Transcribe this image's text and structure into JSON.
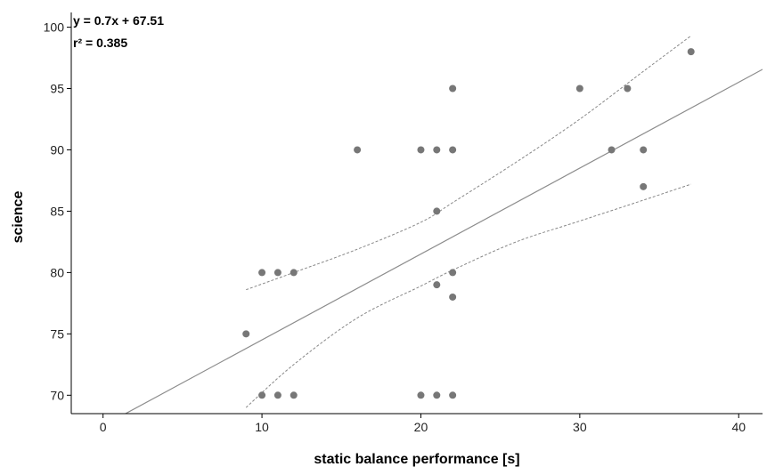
{
  "chart_data": {
    "type": "scatter",
    "title": "",
    "xlabel": "static balance performance [s]",
    "ylabel": "science",
    "xlim": [
      -2,
      41.5
    ],
    "ylim": [
      68.5,
      101.2
    ],
    "x_ticks": [
      0,
      10,
      20,
      30,
      40
    ],
    "y_ticks": [
      70,
      75,
      80,
      85,
      90,
      95,
      100
    ],
    "grid": false,
    "points": [
      {
        "x": 9,
        "y": 75
      },
      {
        "x": 10,
        "y": 80
      },
      {
        "x": 11,
        "y": 80
      },
      {
        "x": 12,
        "y": 80
      },
      {
        "x": 10,
        "y": 70
      },
      {
        "x": 11,
        "y": 70
      },
      {
        "x": 12,
        "y": 70
      },
      {
        "x": 16,
        "y": 90
      },
      {
        "x": 20,
        "y": 90
      },
      {
        "x": 21,
        "y": 90
      },
      {
        "x": 22,
        "y": 90
      },
      {
        "x": 22,
        "y": 95
      },
      {
        "x": 21,
        "y": 85
      },
      {
        "x": 21,
        "y": 79
      },
      {
        "x": 22,
        "y": 80
      },
      {
        "x": 22,
        "y": 78
      },
      {
        "x": 20,
        "y": 70
      },
      {
        "x": 21,
        "y": 70
      },
      {
        "x": 22,
        "y": 70
      },
      {
        "x": 30,
        "y": 95
      },
      {
        "x": 33,
        "y": 95
      },
      {
        "x": 32,
        "y": 90
      },
      {
        "x": 34,
        "y": 90
      },
      {
        "x": 34,
        "y": 87
      },
      {
        "x": 37,
        "y": 98
      }
    ],
    "fit_line": {
      "slope": 0.7,
      "intercept": 67.51
    },
    "confidence_band": {
      "upper": [
        [
          9,
          78.6
        ],
        [
          12,
          80.0
        ],
        [
          16,
          81.9
        ],
        [
          20,
          84.1
        ],
        [
          22,
          85.7
        ],
        [
          26,
          89.0
        ],
        [
          30,
          92.5
        ],
        [
          34,
          96.4
        ],
        [
          37,
          99.3
        ]
      ],
      "lower": [
        [
          9,
          69.0
        ],
        [
          12,
          72.5
        ],
        [
          16,
          76.3
        ],
        [
          20,
          78.9
        ],
        [
          22,
          80.2
        ],
        [
          26,
          82.5
        ],
        [
          30,
          84.2
        ],
        [
          34,
          85.9
        ],
        [
          37,
          87.2
        ]
      ]
    },
    "equation_text": "y = 0.7x + 67.51",
    "r2_text": "r² = 0.385",
    "colors": {
      "points": "#777777",
      "line": "#8c8c8c",
      "band": "#888888",
      "axis": "#000000"
    }
  }
}
